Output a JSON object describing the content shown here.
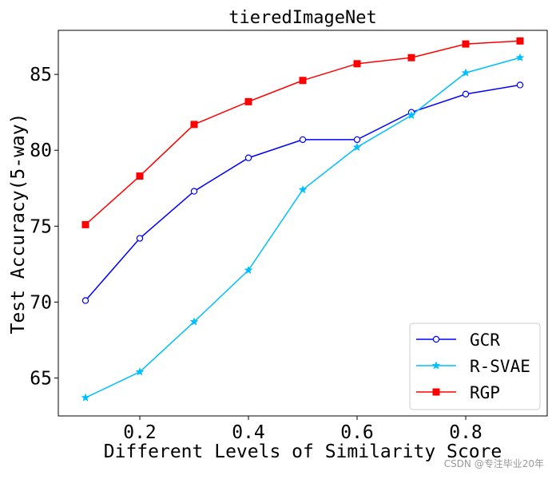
{
  "chart_data": {
    "type": "line",
    "title": "tieredImageNet",
    "xlabel": "Different Levels of Similarity Score",
    "ylabel": "Test Accuracy(5-way)",
    "x": [
      0.1,
      0.2,
      0.3,
      0.4,
      0.5,
      0.6,
      0.7,
      0.8,
      0.9
    ],
    "xlim": [
      0.05,
      0.95
    ],
    "ylim": [
      62.5,
      87.9
    ],
    "xticks": [
      0.2,
      0.4,
      0.6,
      0.8
    ],
    "xtick_labels": [
      "0.2",
      "0.4",
      "0.6",
      "0.8"
    ],
    "yticks": [
      65,
      70,
      75,
      80,
      85
    ],
    "ytick_labels": [
      "65",
      "70",
      "75",
      "80",
      "85"
    ],
    "grid": false,
    "legend_position": "bottom-right",
    "series": [
      {
        "name": "GCR",
        "color": "#0000ff",
        "marker": "circle-open",
        "values": [
          70.1,
          74.2,
          77.3,
          79.5,
          80.7,
          80.7,
          82.5,
          83.7,
          84.3
        ]
      },
      {
        "name": "R-SVAE",
        "color": "#00bfff",
        "marker": "star",
        "values": [
          63.7,
          65.4,
          68.7,
          72.1,
          77.4,
          80.2,
          82.3,
          85.1,
          86.1
        ]
      },
      {
        "name": "RGP",
        "color": "#ff0000",
        "marker": "square",
        "values": [
          75.1,
          78.3,
          81.7,
          83.2,
          84.6,
          85.7,
          86.1,
          87.0,
          87.2
        ]
      }
    ]
  },
  "watermark": "CSDN @专注毕业20年"
}
